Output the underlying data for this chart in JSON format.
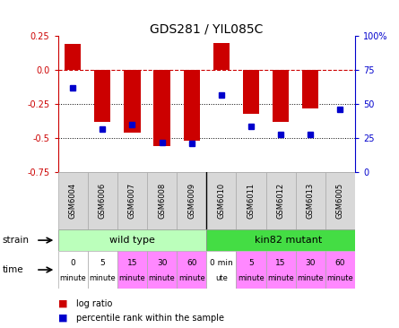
{
  "title": "GDS281 / YIL085C",
  "samples": [
    "GSM6004",
    "GSM6006",
    "GSM6007",
    "GSM6008",
    "GSM6009",
    "GSM6010",
    "GSM6011",
    "GSM6012",
    "GSM6013",
    "GSM6005"
  ],
  "log_ratio": [
    0.19,
    -0.38,
    -0.46,
    -0.56,
    -0.52,
    0.2,
    -0.32,
    -0.38,
    -0.28,
    0.0
  ],
  "percentile": [
    0.62,
    0.32,
    0.35,
    0.22,
    0.21,
    0.57,
    0.34,
    0.28,
    0.28,
    0.46
  ],
  "ylim": [
    -0.75,
    0.25
  ],
  "yticks_left": [
    -0.75,
    -0.5,
    -0.25,
    0.0,
    0.25
  ],
  "yticks_right_vals": [
    0,
    25,
    50,
    75,
    100
  ],
  "bar_color": "#cc0000",
  "dot_color": "#0000cc",
  "bar_width": 0.55,
  "strain_labels": [
    "wild type",
    "kin82 mutant"
  ],
  "strain_colors": [
    "#bbffbb",
    "#44dd44"
  ],
  "time_colors": [
    "#ffffff",
    "#ffffff",
    "#ff88ff",
    "#ff88ff",
    "#ff88ff",
    "#ffffff",
    "#ff88ff",
    "#ff88ff",
    "#ff88ff",
    "#ff88ff"
  ],
  "time_labels_top": [
    "0",
    "5",
    "15",
    "30",
    "60",
    "0 min",
    "5",
    "15",
    "30",
    "60"
  ],
  "time_labels_bot": [
    "minute",
    "minute",
    "minute",
    "minute",
    "minute",
    "ute",
    "minute",
    "minute",
    "minute",
    "minute"
  ],
  "zero_line_color": "#cc0000",
  "grid_color": "#000000",
  "label_bg": "#d8d8d8",
  "label_edge": "#aaaaaa"
}
